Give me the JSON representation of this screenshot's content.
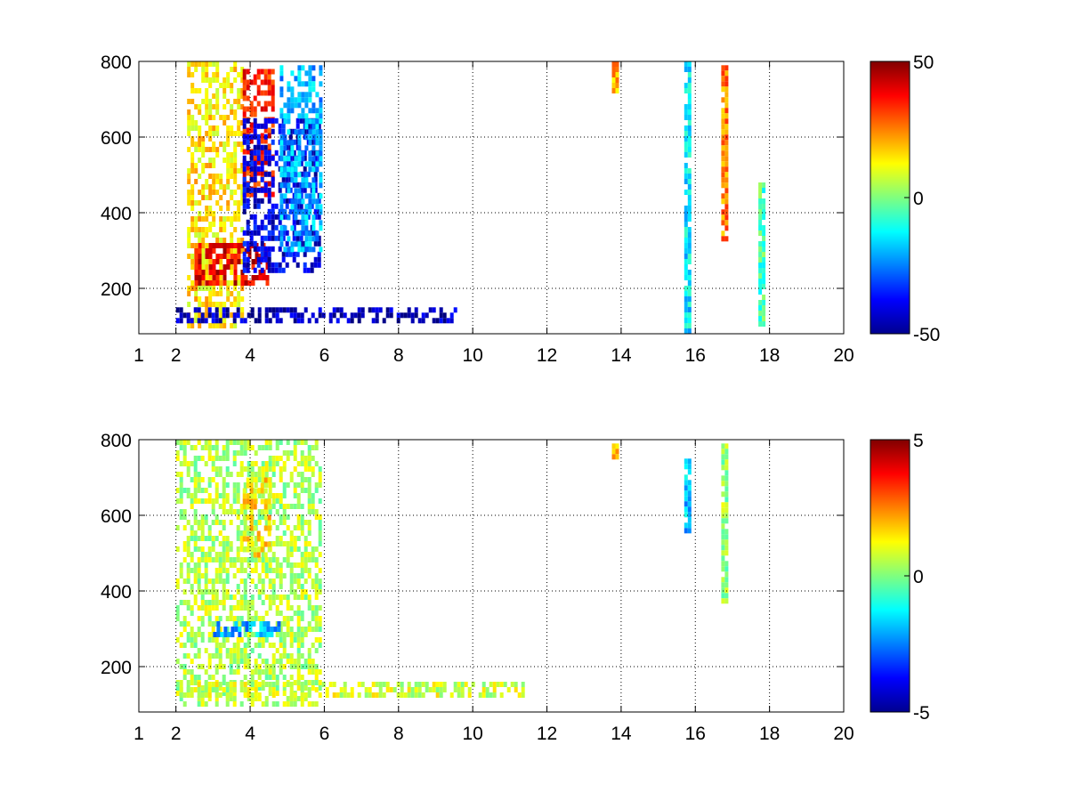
{
  "chart_data": [
    {
      "type": "heatmap",
      "title": "",
      "xlabel": "",
      "ylabel": "",
      "xlim": [
        1,
        20
      ],
      "ylim": [
        80,
        800
      ],
      "grid": true,
      "grid_style": "dotted",
      "x_ticks": [
        1,
        2,
        4,
        6,
        8,
        10,
        12,
        14,
        16,
        18,
        20
      ],
      "x_tick_labels": [
        "1",
        "2",
        "4",
        "6",
        "8",
        "10",
        "12",
        "14",
        "16",
        "18",
        "20"
      ],
      "y_ticks": [
        200,
        400,
        600,
        800
      ],
      "y_tick_labels": [
        "200",
        "400",
        "600",
        "800"
      ],
      "colormap": "jet",
      "colorbar": {
        "min": -50,
        "max": 50,
        "tick_labels": [
          "50",
          "0",
          "-50"
        ],
        "position": "right"
      },
      "features": [
        {
          "x": [
            2.3,
            3.8
          ],
          "y": [
            100,
            800
          ],
          "value": 15,
          "description_free": true
        },
        {
          "x": [
            2.5,
            4.5
          ],
          "y": [
            220,
            320
          ],
          "value": 40
        },
        {
          "x": [
            3.8,
            4.6
          ],
          "y": [
            450,
            780
          ],
          "value": 35
        },
        {
          "x": [
            3.8,
            5.9
          ],
          "y": [
            250,
            650
          ],
          "value": -40
        },
        {
          "x": [
            2.0,
            9.5
          ],
          "y": [
            120,
            150
          ],
          "value": -45
        },
        {
          "x": [
            4.8,
            5.9
          ],
          "y": [
            300,
            790
          ],
          "value": -20
        },
        {
          "x": [
            15.7,
            15.8
          ],
          "y": [
            80,
            800
          ],
          "value": -15
        },
        {
          "x": [
            16.7,
            16.85
          ],
          "y": [
            330,
            790
          ],
          "value": 25
        },
        {
          "x": [
            17.7,
            17.8
          ],
          "y": [
            100,
            480
          ],
          "value": -5
        },
        {
          "x": [
            13.75,
            13.9
          ],
          "y": [
            720,
            800
          ],
          "value": 20
        }
      ]
    },
    {
      "type": "heatmap",
      "title": "",
      "xlabel": "",
      "ylabel": "",
      "xlim": [
        1,
        20
      ],
      "ylim": [
        80,
        800
      ],
      "grid": true,
      "grid_style": "dotted",
      "x_ticks": [
        1,
        2,
        4,
        6,
        8,
        10,
        12,
        14,
        16,
        18,
        20
      ],
      "x_tick_labels": [
        "1",
        "2",
        "4",
        "6",
        "8",
        "10",
        "12",
        "14",
        "16",
        "18",
        "20"
      ],
      "y_ticks": [
        200,
        400,
        600,
        800
      ],
      "y_tick_labels": [
        "200",
        "400",
        "600",
        "800"
      ],
      "colormap": "jet",
      "colorbar": {
        "min": -5,
        "max": 5,
        "tick_labels": [
          "5",
          "0",
          "-5"
        ],
        "position": "right"
      },
      "features": [
        {
          "x": [
            2.0,
            5.9
          ],
          "y": [
            100,
            800
          ],
          "value": 0.5
        },
        {
          "x": [
            3.0,
            4.8
          ],
          "y": [
            280,
            320
          ],
          "value": -2
        },
        {
          "x": [
            3.8,
            4.5
          ],
          "y": [
            500,
            700
          ],
          "value": 1.5
        },
        {
          "x": [
            2.0,
            11.4
          ],
          "y": [
            120,
            160
          ],
          "value": 0.8
        },
        {
          "x": [
            15.7,
            15.85
          ],
          "y": [
            560,
            750
          ],
          "value": -1.8
        },
        {
          "x": [
            16.7,
            16.85
          ],
          "y": [
            370,
            790
          ],
          "value": 0.3
        },
        {
          "x": [
            13.75,
            13.9
          ],
          "y": [
            750,
            790
          ],
          "value": 2
        }
      ]
    }
  ]
}
